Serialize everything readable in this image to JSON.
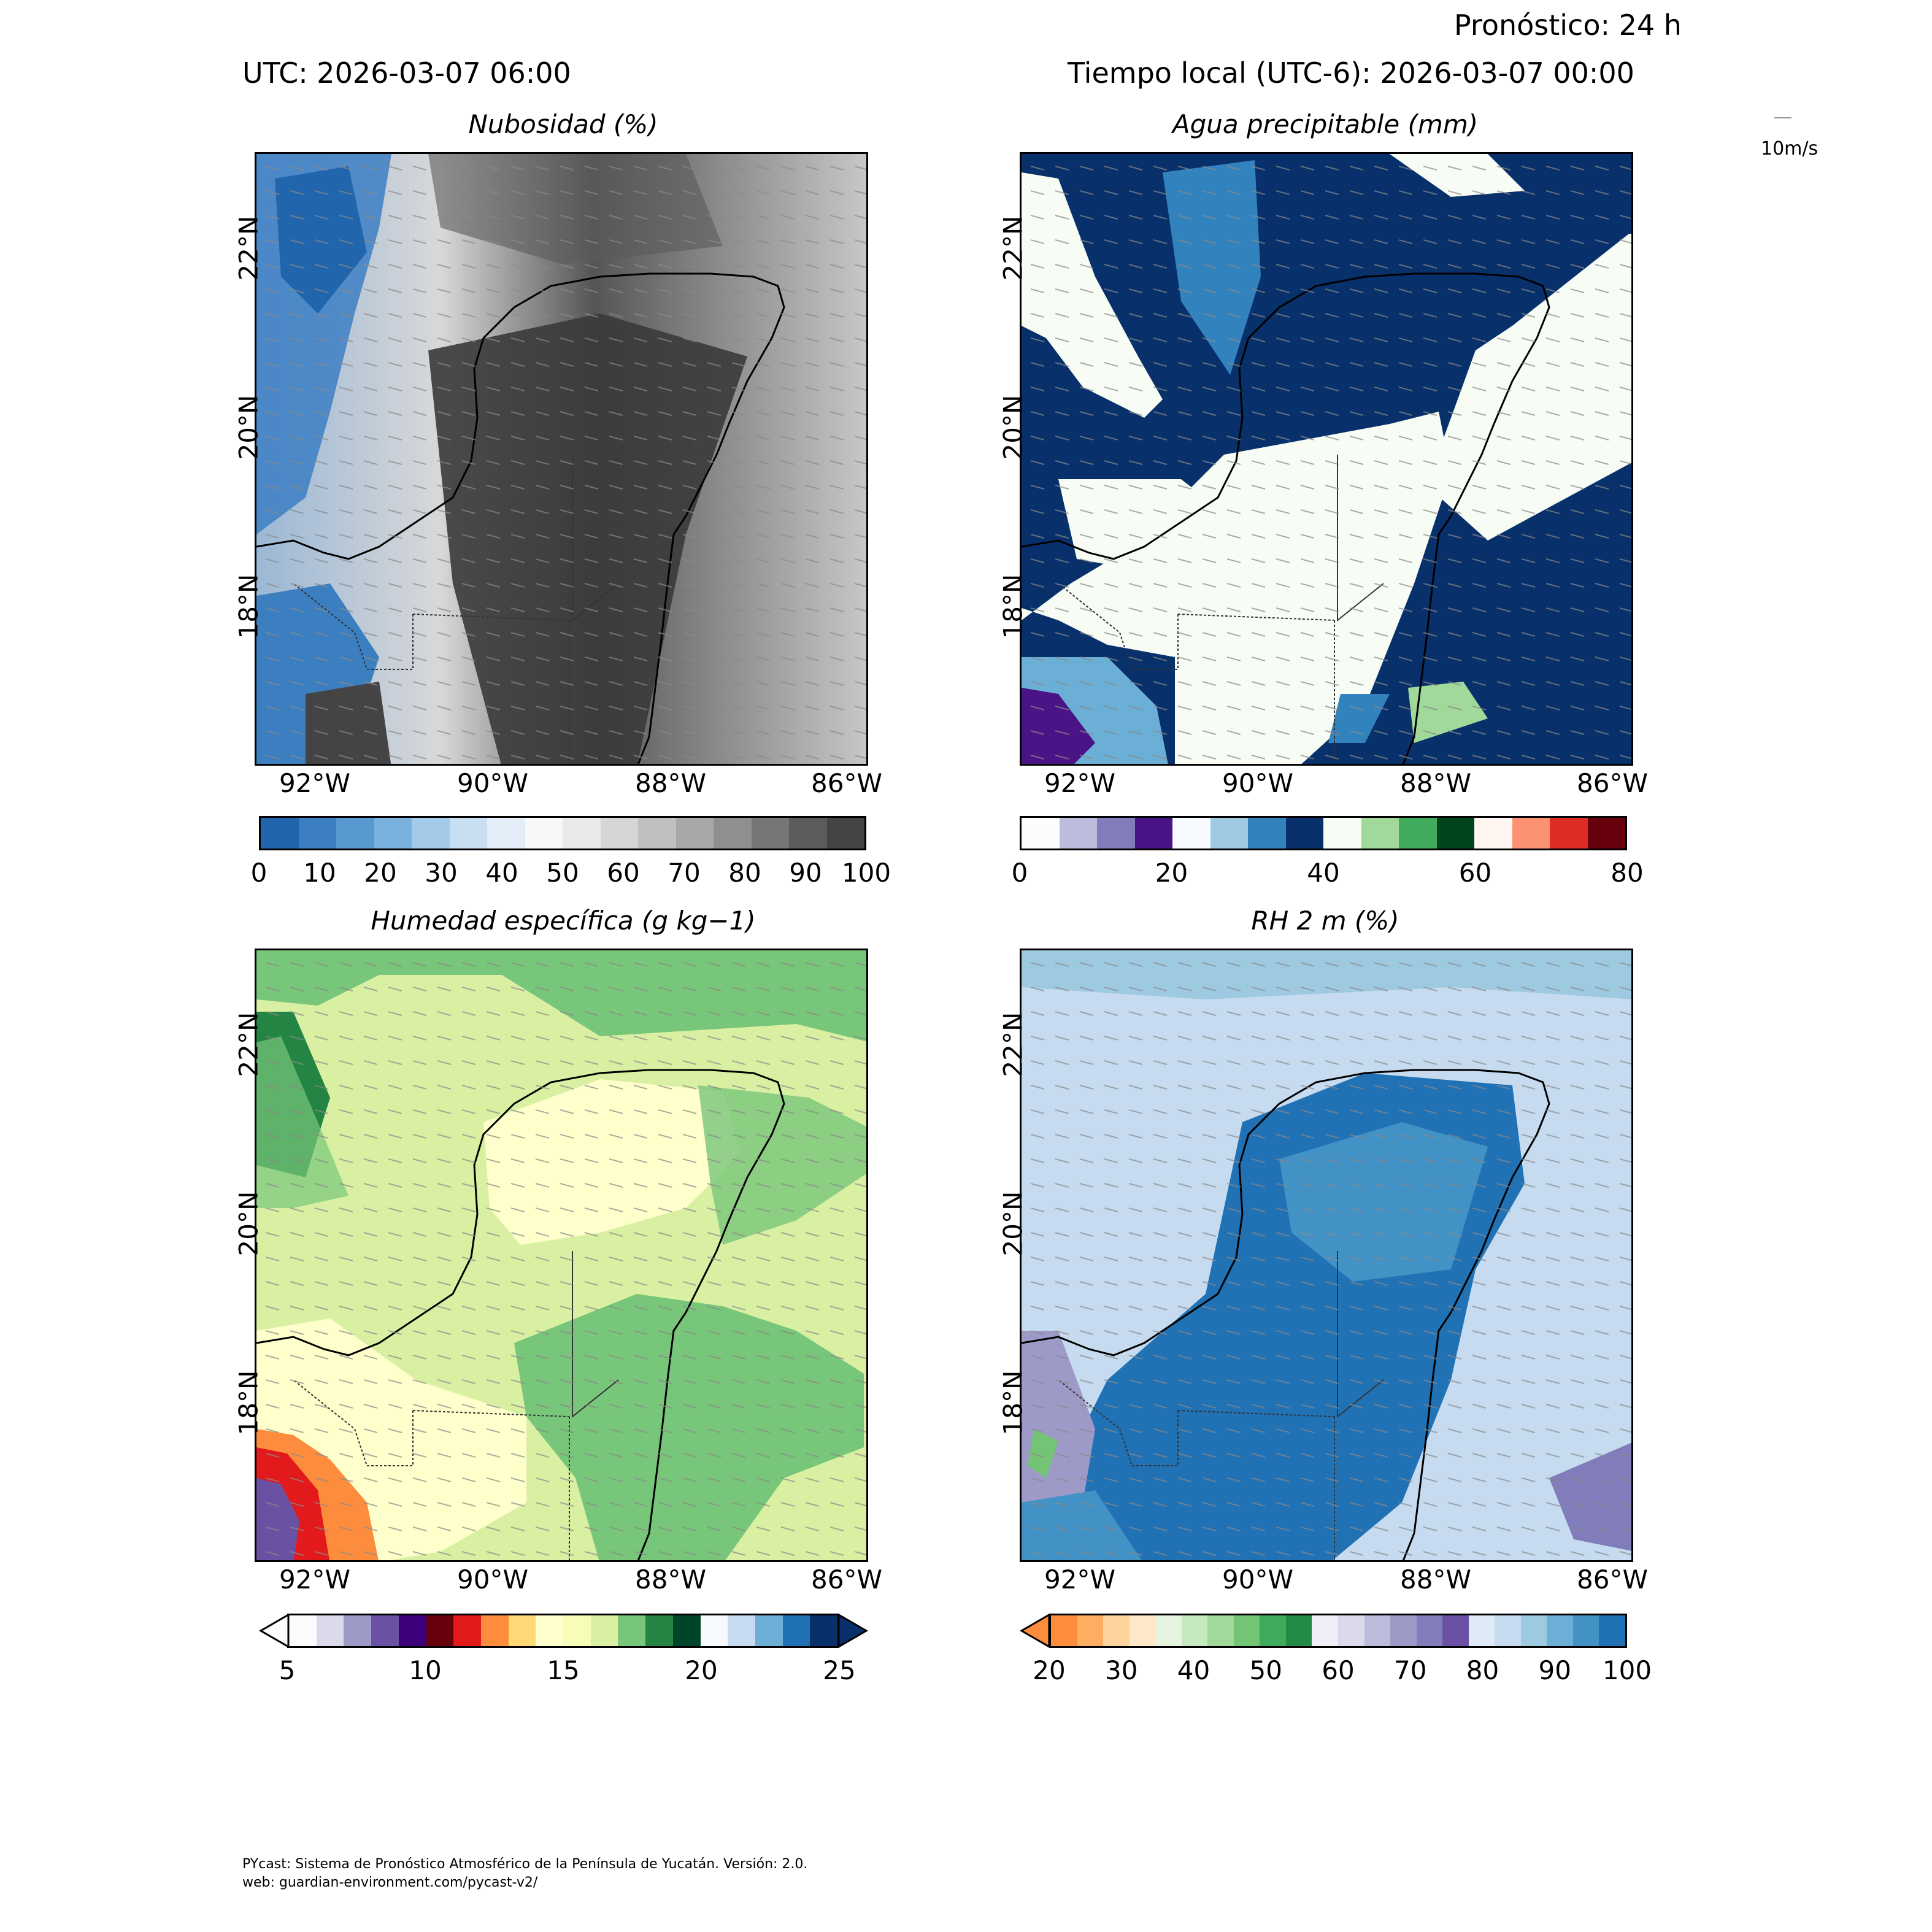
{
  "header": {
    "forecast": "Pronóstico: 24 h",
    "utc": "UTC:  2026-03-07 06:00",
    "local": "Tiempo local (UTC-6): 2026-03-07 00:00",
    "wind_scale": "10m/s"
  },
  "axes": {
    "lon_ticks": [
      "92°W",
      "90°W",
      "88°W",
      "86°W"
    ],
    "lat_ticks": [
      "22°N",
      "20°N",
      "18°N"
    ]
  },
  "panels": [
    {
      "title": "Nubosidad (%)",
      "colorbar": {
        "ticks": [
          "0",
          "10",
          "20",
          "30",
          "40",
          "50",
          "60",
          "70",
          "80",
          "90",
          "100"
        ],
        "colors": [
          "#2166ac",
          "#3b7fc0",
          "#5799d1",
          "#79b2de",
          "#a3cbe9",
          "#c8def1",
          "#e4eef8",
          "#f8f8f8",
          "#eaeaea",
          "#d6d6d6",
          "#c0c0c0",
          "#a8a8a8",
          "#8f8f8f",
          "#767676",
          "#5c5c5c",
          "#444444"
        ],
        "extend": "neither"
      }
    },
    {
      "title": "Agua precipitable (mm)",
      "colorbar": {
        "ticks": [
          "0",
          "20",
          "40",
          "60",
          "80"
        ],
        "colors": [
          "#fcfbfd",
          "#bcbddc",
          "#807dba",
          "#4a1486",
          "#f7fbff",
          "#9ecae1",
          "#3182bd",
          "#08306b",
          "#f7fcf5",
          "#a1d99b",
          "#41ab5d",
          "#00441b",
          "#fff5f0",
          "#fc9272",
          "#de2d26",
          "#67000d"
        ],
        "extend": "neither"
      }
    },
    {
      "title": "Humedad específica (g kg−1)",
      "colorbar": {
        "ticks": [
          "5",
          "10",
          "15",
          "20",
          "25"
        ],
        "colors": [
          "#fcfbfd",
          "#dadaeb",
          "#9e9ac8",
          "#6a51a3",
          "#3f007d",
          "#67000d",
          "#e31a1c",
          "#fd8d3c",
          "#fed976",
          "#ffffcc",
          "#f7fcb9",
          "#d9f0a3",
          "#78c679",
          "#238443",
          "#004529",
          "#f7fbff",
          "#c6dbef",
          "#6baed6",
          "#2171b5",
          "#08306b"
        ],
        "extend": "both"
      }
    },
    {
      "title": "RH 2 m (%)",
      "colorbar": {
        "ticks": [
          "20",
          "30",
          "40",
          "50",
          "60",
          "70",
          "80",
          "90",
          "100"
        ],
        "colors": [
          "#fd8d3c",
          "#fdae61",
          "#fdd49e",
          "#fee8c8",
          "#e5f5e0",
          "#c7e9c0",
          "#a1d99b",
          "#74c476",
          "#41ab5d",
          "#238b45",
          "#efedf5",
          "#dadaeb",
          "#bcbddc",
          "#9e9ac8",
          "#807dba",
          "#6a51a3",
          "#deebf7",
          "#c6dbef",
          "#9ecae1",
          "#6baed6",
          "#4292c6",
          "#2171b5"
        ],
        "extend": "min"
      }
    }
  ],
  "footer": {
    "line1": "PYcast: Sistema de Pronóstico Atmosférico de la Península de Yucatán. Versión: 2.0.",
    "line2": "web: guardian-environment.com/pycast-v2/"
  }
}
